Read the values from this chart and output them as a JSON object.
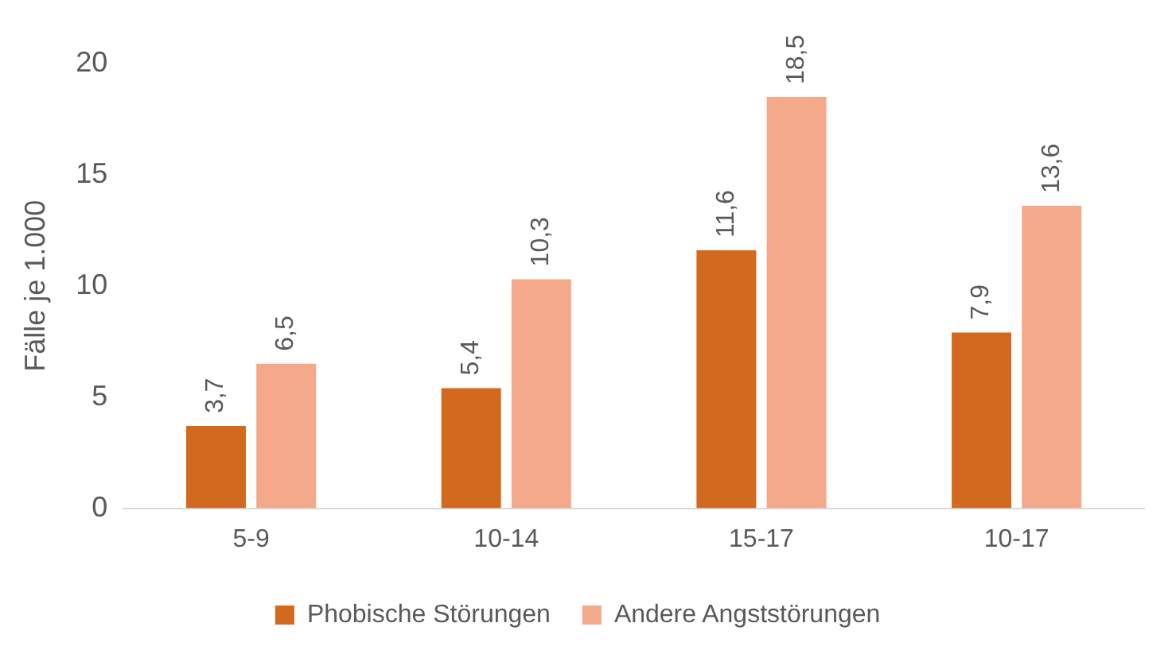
{
  "chart_data": {
    "type": "bar",
    "ylabel": "Fälle je 1.000",
    "categories": [
      "5-9",
      "10-14",
      "15-17",
      "10-17"
    ],
    "series": [
      {
        "name": "Phobische Störungen",
        "color": "#d2691e",
        "values": [
          3.7,
          5.4,
          11.6,
          7.9
        ],
        "value_labels": [
          "3,7",
          "5,4",
          "11,6",
          "7,9"
        ]
      },
      {
        "name": "Andere Angststörungen",
        "color": "#f4a98a",
        "values": [
          6.5,
          10.3,
          18.5,
          13.6
        ],
        "value_labels": [
          "6,5",
          "10,3",
          "18,5",
          "13,6"
        ]
      }
    ],
    "ylim": [
      0,
      20
    ],
    "yticks": [
      0,
      5,
      10,
      15,
      20
    ],
    "grid": false,
    "legend": "bottom"
  }
}
